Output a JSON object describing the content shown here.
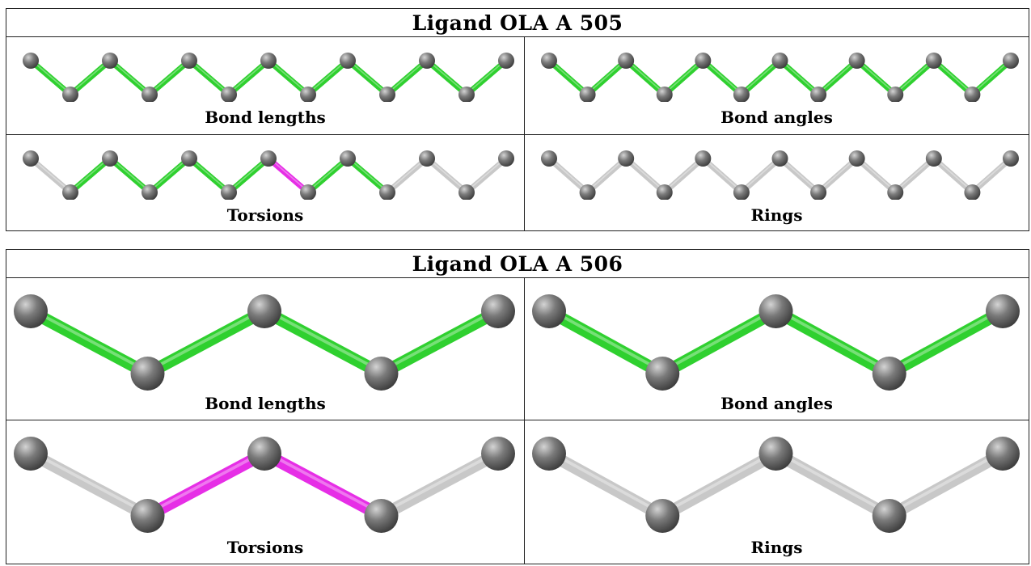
{
  "colors": {
    "ok_bond": "#2fd02f",
    "outlier_bond": "#e62ee6",
    "unassessed_bond": "#c8c8c8",
    "atom": "#7a7a7a"
  },
  "ligands": [
    {
      "title": "Ligand OLA A 505",
      "panels": [
        {
          "label": "Bond lengths",
          "bond_status": [
            "ok",
            "ok",
            "ok",
            "ok",
            "ok",
            "ok",
            "ok",
            "ok",
            "ok",
            "ok",
            "ok",
            "ok"
          ]
        },
        {
          "label": "Bond angles",
          "bond_status": [
            "ok",
            "ok",
            "ok",
            "ok",
            "ok",
            "ok",
            "ok",
            "ok",
            "ok",
            "ok",
            "ok",
            "ok"
          ]
        },
        {
          "label": "Torsions",
          "bond_status": [
            "none",
            "ok",
            "ok",
            "ok",
            "ok",
            "ok",
            "outlier",
            "ok",
            "ok",
            "none",
            "none",
            "none"
          ]
        },
        {
          "label": "Rings",
          "bond_status": [
            "none",
            "none",
            "none",
            "none",
            "none",
            "none",
            "none",
            "none",
            "none",
            "none",
            "none",
            "none"
          ]
        }
      ]
    },
    {
      "title": "Ligand OLA A 506",
      "panels": [
        {
          "label": "Bond lengths",
          "bond_status": [
            "ok",
            "ok",
            "ok",
            "ok"
          ]
        },
        {
          "label": "Bond angles",
          "bond_status": [
            "ok",
            "ok",
            "ok",
            "ok"
          ]
        },
        {
          "label": "Torsions",
          "bond_status": [
            "none",
            "outlier",
            "outlier",
            "none"
          ]
        },
        {
          "label": "Rings",
          "bond_status": [
            "none",
            "none",
            "none",
            "none"
          ]
        }
      ]
    }
  ]
}
